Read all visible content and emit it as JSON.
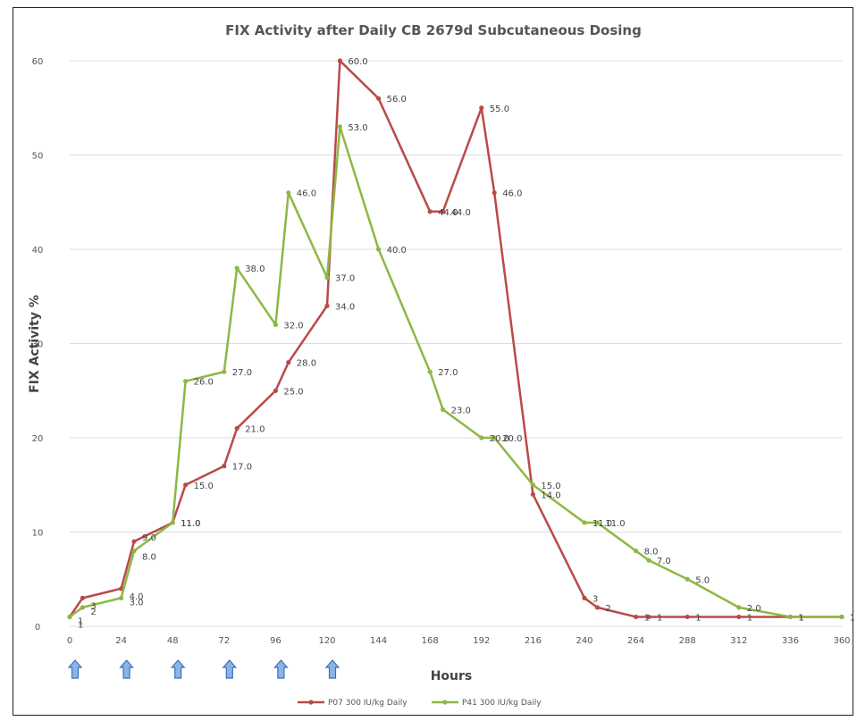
{
  "chart_data": {
    "type": "line",
    "title": "FIX Activity after Daily CB 2679d Subcutaneous Dosing",
    "xlabel": "Hours",
    "ylabel": "FIX Activity %",
    "xlim": [
      0,
      360
    ],
    "ylim": [
      0,
      60
    ],
    "xticks": [
      0,
      24,
      48,
      72,
      96,
      120,
      144,
      168,
      192,
      216,
      240,
      264,
      288,
      312,
      336,
      360
    ],
    "yticks": [
      0,
      10,
      20,
      30,
      40,
      50,
      60
    ],
    "grid": "horizontal",
    "legend_position": "bottom",
    "dosing_markers_hours": [
      0,
      24,
      48,
      72,
      96,
      120
    ],
    "series": [
      {
        "name": "P07 300 IU/kg Daily",
        "color": "#b94a48",
        "points": [
          {
            "x": 0,
            "y": 1,
            "label": "1"
          },
          {
            "x": 6,
            "y": 3,
            "label": "3"
          },
          {
            "x": 24,
            "y": 4,
            "label": "4.0"
          },
          {
            "x": 30,
            "y": 9,
            "label": "9.0"
          },
          {
            "x": 48,
            "y": 11,
            "label": "11.0"
          },
          {
            "x": 54,
            "y": 15,
            "label": "15.0"
          },
          {
            "x": 72,
            "y": 17,
            "label": "17.0"
          },
          {
            "x": 78,
            "y": 21,
            "label": "21.0"
          },
          {
            "x": 96,
            "y": 25,
            "label": "25.0"
          },
          {
            "x": 102,
            "y": 28,
            "label": "28.0"
          },
          {
            "x": 120,
            "y": 34,
            "label": "34.0"
          },
          {
            "x": 126,
            "y": 60,
            "label": "60.0"
          },
          {
            "x": 144,
            "y": 56,
            "label": "56.0"
          },
          {
            "x": 168,
            "y": 44,
            "label": "44.0"
          },
          {
            "x": 174,
            "y": 44,
            "label": "44.0"
          },
          {
            "x": 192,
            "y": 55,
            "label": "55.0"
          },
          {
            "x": 198,
            "y": 46,
            "label": "46.0"
          },
          {
            "x": 216,
            "y": 14,
            "label": "14.0"
          },
          {
            "x": 240,
            "y": 3,
            "label": "3"
          },
          {
            "x": 246,
            "y": 2,
            "label": "2"
          },
          {
            "x": 264,
            "y": 1,
            "label": "1"
          },
          {
            "x": 270,
            "y": 1,
            "label": "1"
          },
          {
            "x": 288,
            "y": 1,
            "label": "1"
          },
          {
            "x": 312,
            "y": 1,
            "label": "1"
          },
          {
            "x": 336,
            "y": 1,
            "label": "1"
          },
          {
            "x": 360,
            "y": 1,
            "label": "1"
          }
        ]
      },
      {
        "name": "P41 300 IU/kg Daily",
        "color": "#8db843",
        "points": [
          {
            "x": 0,
            "y": 1,
            "label": "1"
          },
          {
            "x": 6,
            "y": 2,
            "label": "2"
          },
          {
            "x": 24,
            "y": 3,
            "label": "3.0"
          },
          {
            "x": 30,
            "y": 8,
            "label": "8.0"
          },
          {
            "x": 48,
            "y": 11,
            "label": "11.0"
          },
          {
            "x": 54,
            "y": 26,
            "label": "26.0"
          },
          {
            "x": 72,
            "y": 27,
            "label": "27.0"
          },
          {
            "x": 78,
            "y": 38,
            "label": "38.0"
          },
          {
            "x": 96,
            "y": 32,
            "label": "32.0"
          },
          {
            "x": 102,
            "y": 46,
            "label": "46.0"
          },
          {
            "x": 120,
            "y": 37,
            "label": "37.0"
          },
          {
            "x": 126,
            "y": 53,
            "label": "53.0"
          },
          {
            "x": 144,
            "y": 40,
            "label": "40.0"
          },
          {
            "x": 168,
            "y": 27,
            "label": "27.0"
          },
          {
            "x": 174,
            "y": 23,
            "label": "23.0"
          },
          {
            "x": 192,
            "y": 20,
            "label": "20.0"
          },
          {
            "x": 198,
            "y": 20,
            "label": "20.0"
          },
          {
            "x": 216,
            "y": 15,
            "label": "15.0"
          },
          {
            "x": 240,
            "y": 11,
            "label": "11.0"
          },
          {
            "x": 246,
            "y": 11,
            "label": "11.0"
          },
          {
            "x": 264,
            "y": 8,
            "label": "8.0"
          },
          {
            "x": 270,
            "y": 7,
            "label": "7.0"
          },
          {
            "x": 288,
            "y": 5,
            "label": "5.0"
          },
          {
            "x": 312,
            "y": 2,
            "label": "2.0"
          },
          {
            "x": 336,
            "y": 1,
            "label": "1"
          },
          {
            "x": 360,
            "y": 1,
            "label": "1"
          }
        ]
      }
    ]
  }
}
